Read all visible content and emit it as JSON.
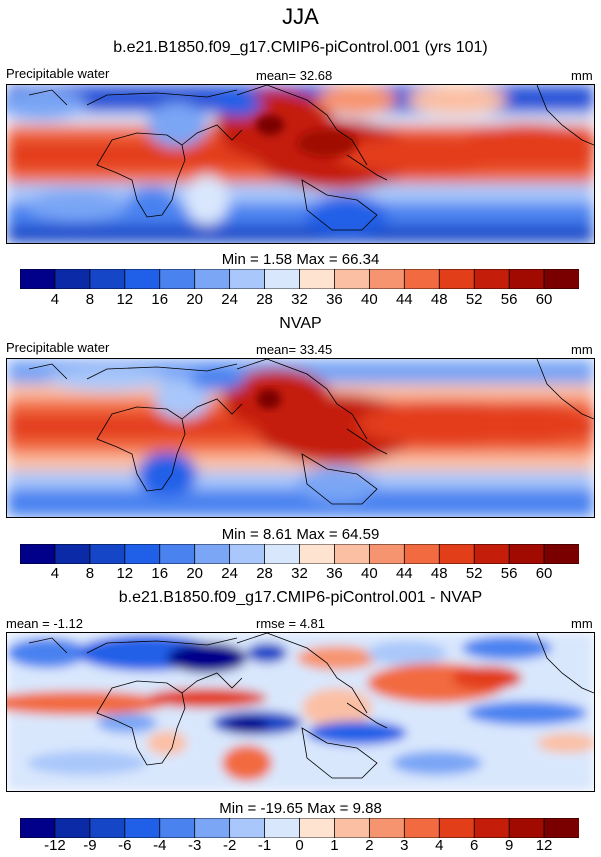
{
  "figure": {
    "title": "JJA",
    "subtitle": "b.e21.B1850.f09_g17.CMIP6-piControl.001 (yrs 101)"
  },
  "panels": [
    {
      "id": "model",
      "left_label": "Precipitable water",
      "center_label": "mean=  32.68",
      "right_label": "mm",
      "stats": "Min =   1.58 Max =  66.34",
      "colorbar": {
        "labels": [
          "4",
          "8",
          "12",
          "16",
          "20",
          "24",
          "28",
          "32",
          "36",
          "40",
          "44",
          "48",
          "52",
          "56",
          "60"
        ],
        "colors": [
          "#00008b",
          "#0b2aa8",
          "#1546c8",
          "#2060e8",
          "#4a82f0",
          "#7aa6f5",
          "#a9c7fa",
          "#d9e7fd",
          "#fde3d0",
          "#fbc0a4",
          "#f79470",
          "#f26a40",
          "#e33e1a",
          "#c41e0a",
          "#a00a00",
          "#7a0000"
        ]
      }
    },
    {
      "id": "obs",
      "heading": "NVAP",
      "left_label": "Precipitable water",
      "center_label": "mean=  33.45",
      "right_label": "mm",
      "stats": "Min =   8.61 Max =  64.59",
      "colorbar": {
        "labels": [
          "4",
          "8",
          "12",
          "16",
          "20",
          "24",
          "28",
          "32",
          "36",
          "40",
          "44",
          "48",
          "52",
          "56",
          "60"
        ],
        "colors": [
          "#00008b",
          "#0b2aa8",
          "#1546c8",
          "#2060e8",
          "#4a82f0",
          "#7aa6f5",
          "#a9c7fa",
          "#d9e7fd",
          "#fde3d0",
          "#fbc0a4",
          "#f79470",
          "#f26a40",
          "#e33e1a",
          "#c41e0a",
          "#a00a00",
          "#7a0000"
        ]
      }
    },
    {
      "id": "diff",
      "heading": "b.e21.B1850.f09_g17.CMIP6-piControl.001 - NVAP",
      "left_label": "mean =  -1.12",
      "center_label": "rmse =   4.81",
      "right_label": "mm",
      "stats": "Min = -19.65 Max =   9.88",
      "colorbar": {
        "labels": [
          "-12",
          "-9",
          "-6",
          "-4",
          "-3",
          "-2",
          "-1",
          "0",
          "1",
          "2",
          "3",
          "4",
          "6",
          "9",
          "12"
        ],
        "colors": [
          "#00008b",
          "#0b2aa8",
          "#1546c8",
          "#2060e8",
          "#4a82f0",
          "#7aa6f5",
          "#a9c7fa",
          "#d9e7fd",
          "#fde3d0",
          "#fbc0a4",
          "#f79470",
          "#f26a40",
          "#e33e1a",
          "#c41e0a",
          "#a00a00",
          "#7a0000"
        ]
      }
    }
  ],
  "chart_data": [
    {
      "type": "heatmap",
      "title": "Precipitable water",
      "description": "b.e21.B1850.f09_g17.CMIP6-piControl.001 (yrs 101), JJA",
      "units": "mm",
      "mean": 32.68,
      "min": 1.58,
      "max": 66.34,
      "contour_levels": [
        4,
        8,
        12,
        16,
        20,
        24,
        28,
        32,
        36,
        40,
        44,
        48,
        52,
        56,
        60
      ]
    },
    {
      "type": "heatmap",
      "title": "NVAP",
      "units": "mm",
      "mean": 33.45,
      "min": 8.61,
      "max": 64.59,
      "contour_levels": [
        4,
        8,
        12,
        16,
        20,
        24,
        28,
        32,
        36,
        40,
        44,
        48,
        52,
        56,
        60
      ]
    },
    {
      "type": "heatmap",
      "title": "b.e21.B1850.f09_g17.CMIP6-piControl.001 - NVAP",
      "units": "mm",
      "mean": -1.12,
      "rmse": 4.81,
      "min": -19.65,
      "max": 9.88,
      "contour_levels": [
        -12,
        -9,
        -6,
        -4,
        -3,
        -2,
        -1,
        0,
        1,
        2,
        3,
        4,
        6,
        9,
        12
      ]
    }
  ]
}
